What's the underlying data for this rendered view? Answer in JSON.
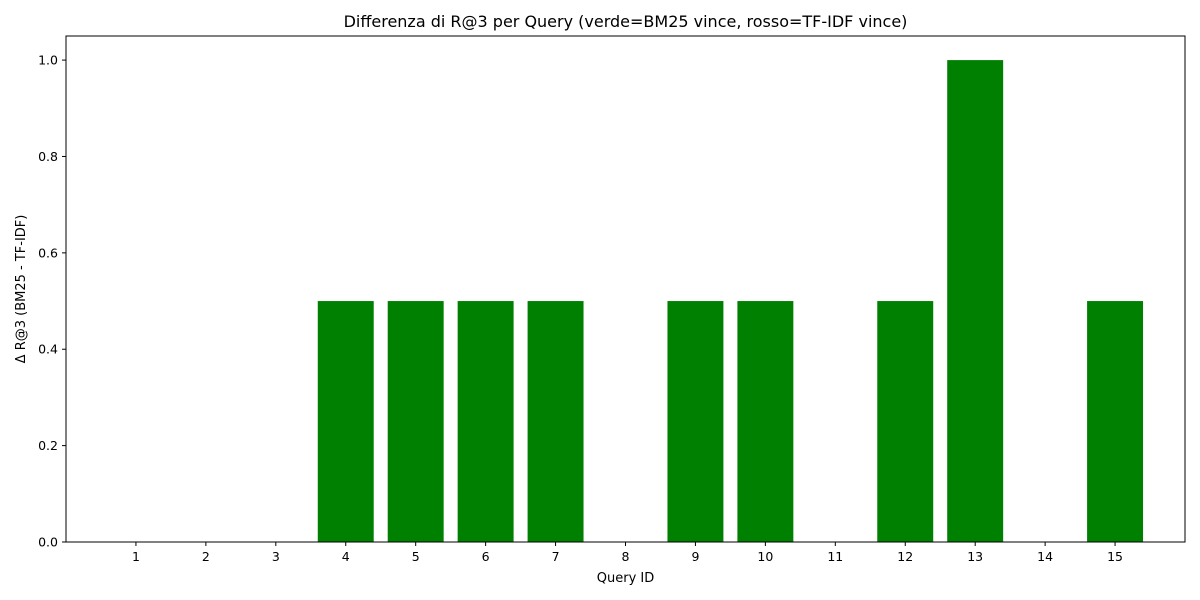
{
  "chart_data": {
    "type": "bar",
    "title": "Differenza di R@3 per Query (verde=BM25 vince, rosso=TF-IDF vince)",
    "xlabel": "Query ID",
    "ylabel": "Δ R@3 (BM25 - TF-IDF)",
    "categories": [
      "1",
      "2",
      "3",
      "4",
      "5",
      "6",
      "7",
      "8",
      "9",
      "10",
      "11",
      "12",
      "13",
      "14",
      "15"
    ],
    "values": [
      0,
      0,
      0,
      0.5,
      0.5,
      0.5,
      0.5,
      0,
      0.5,
      0.5,
      0,
      0.5,
      1.0,
      0,
      0.5
    ],
    "ylim": [
      0,
      1.05
    ],
    "yticks": [
      "0.0",
      "0.2",
      "0.4",
      "0.6",
      "0.8",
      "1.0"
    ],
    "grid": false,
    "legend": "none",
    "colors": {
      "positive": "#008000",
      "negative": "#ff0000"
    }
  }
}
